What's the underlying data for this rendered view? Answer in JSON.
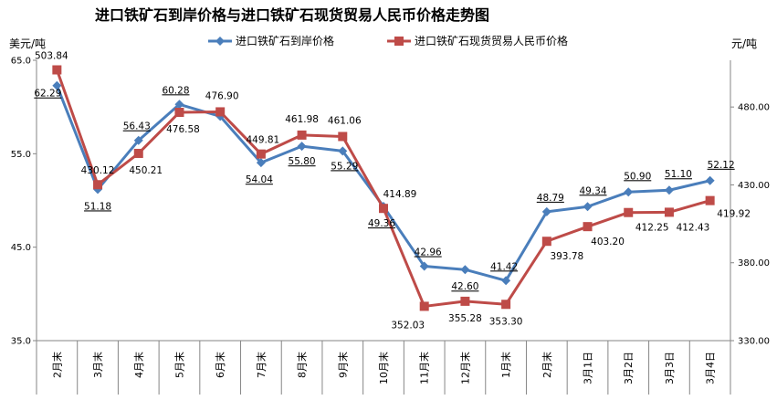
{
  "chart_data": {
    "type": "line",
    "title": "进口铁矿石到岸价格与进口铁矿石现货贸易人民币价格走势图",
    "left_axis_label": "美元/吨",
    "right_axis_label": "元/吨",
    "categories": [
      "2月末",
      "3月末",
      "4月末",
      "5月末",
      "6月末",
      "7月末",
      "8月末",
      "9月末",
      "10月末",
      "11月末",
      "12月末",
      "1月末",
      "2月末",
      "3月1日",
      "3月2日",
      "3月3日",
      "3月4日"
    ],
    "left_axis": {
      "min": 35.0,
      "max": 65.0,
      "ticks": [
        "35.0",
        "45.0",
        "55.0",
        "65.0"
      ]
    },
    "right_axis": {
      "min": 330,
      "max": 510,
      "ticks": [
        "330.00",
        "380.00",
        "430.00",
        "480.00"
      ]
    },
    "series": [
      {
        "name": "进口铁矿石到岸价格",
        "axis": "left",
        "color": "#4a7ebb",
        "marker": "diamond",
        "values": [
          62.29,
          51.18,
          56.43,
          60.28,
          59.0,
          54.04,
          55.8,
          55.29,
          49.36,
          42.96,
          42.6,
          41.42,
          48.79,
          49.34,
          50.9,
          51.1,
          52.12
        ],
        "labels": [
          "62.29",
          "51.18",
          "56.43",
          "60.28",
          "",
          "54.04",
          "55.80",
          "55.29",
          "49.36",
          "42.96",
          "42.60",
          "41.42",
          "48.79",
          "49.34",
          "50.90",
          "51.10",
          "52.12"
        ]
      },
      {
        "name": "进口铁矿石现货贸易人民币价格",
        "axis": "right",
        "color": "#be4b48",
        "marker": "square",
        "values": [
          503.84,
          430.12,
          450.21,
          476.58,
          476.9,
          449.81,
          461.98,
          461.06,
          414.89,
          352.03,
          355.28,
          353.3,
          393.78,
          403.2,
          412.25,
          412.43,
          419.92
        ],
        "labels": [
          "503.84",
          "430.12",
          "450.21",
          "476.58",
          "476.90",
          "449.81",
          "461.98",
          "461.06",
          "414.89",
          "352.03",
          "355.28",
          "353.30",
          "393.78",
          "403.20",
          "412.25",
          "412.43",
          "419.92"
        ]
      }
    ],
    "grid": false,
    "legend_position": "top"
  }
}
